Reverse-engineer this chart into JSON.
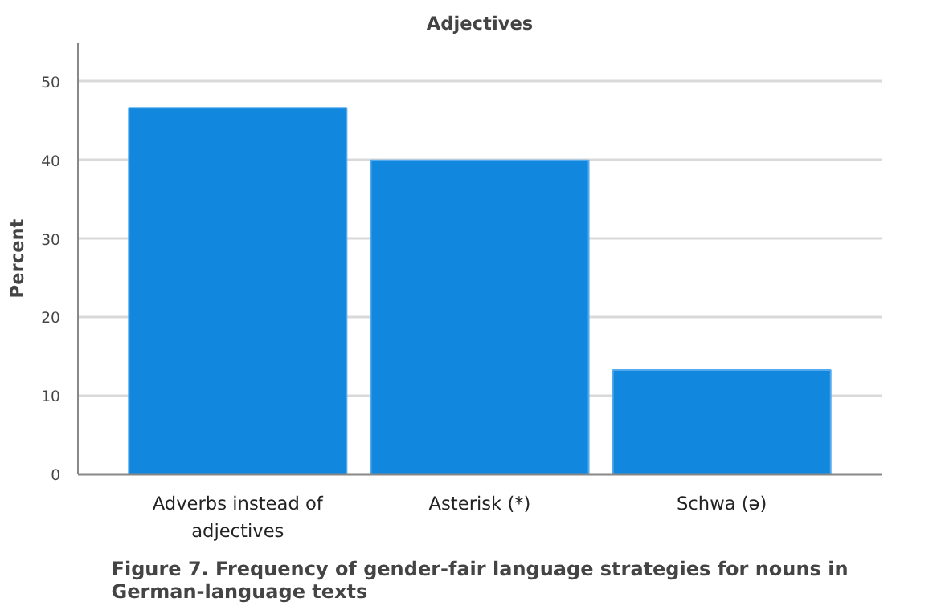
{
  "chart_data": {
    "type": "bar",
    "title": "Adjectives",
    "ylabel": "Percent",
    "categories": [
      "Adverbs instead of adjectives",
      "Asterisk (*)",
      "Schwa (ə)"
    ],
    "values": [
      46.7,
      40.0,
      13.3
    ],
    "color": "#1188dd",
    "ylim": [
      0,
      55
    ],
    "yticks": [
      0,
      10,
      20,
      30,
      40,
      50
    ],
    "grid": "y",
    "annotations": [
      "Figure 7. Frequency of gender-fair language strategies for nouns in German-language texts"
    ]
  }
}
